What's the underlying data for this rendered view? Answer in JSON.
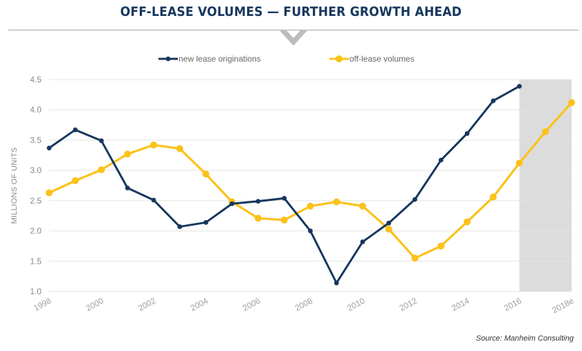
{
  "chart_data": {
    "type": "line",
    "title": "OFF-LEASE VOLUMES — FURTHER GROWTH AHEAD",
    "ylabel": "MILLIONS OF UNITS",
    "xlabel": "",
    "source": "Source: Manheim Consulting",
    "ylim": [
      1.0,
      4.5
    ],
    "yticks": [
      "1.0",
      "1.5",
      "2.0",
      "2.5",
      "3.0",
      "3.5",
      "4.0",
      "4.5"
    ],
    "x": [
      1998,
      1999,
      2000,
      2001,
      2002,
      2003,
      2004,
      2005,
      2006,
      2007,
      2008,
      2009,
      2010,
      2011,
      2012,
      2013,
      2014,
      2015,
      2016,
      2017,
      2018
    ],
    "xtick_labels": [
      "1998",
      "2000",
      "2002",
      "2004",
      "2006",
      "2008",
      "2010",
      "2012",
      "2014",
      "2016",
      "2018e"
    ],
    "forecast_shading": {
      "from": 2016,
      "to": 2018
    },
    "legend_position": "top",
    "grid": "horizontal",
    "series": [
      {
        "name": "new lease originations",
        "color": "#17375e",
        "values": [
          3.37,
          3.67,
          3.49,
          2.71,
          2.51,
          2.07,
          2.14,
          2.45,
          2.49,
          2.54,
          2.0,
          1.14,
          1.82,
          2.13,
          2.52,
          3.17,
          3.61,
          4.15,
          4.39,
          null,
          null
        ]
      },
      {
        "name": "off-lease volumes",
        "color": "#fbc21a",
        "values": [
          2.63,
          2.83,
          3.01,
          3.27,
          3.42,
          3.36,
          2.94,
          2.48,
          2.21,
          2.18,
          2.41,
          2.48,
          2.41,
          2.03,
          1.55,
          1.75,
          2.15,
          2.56,
          3.12,
          3.64,
          4.12
        ]
      }
    ]
  }
}
